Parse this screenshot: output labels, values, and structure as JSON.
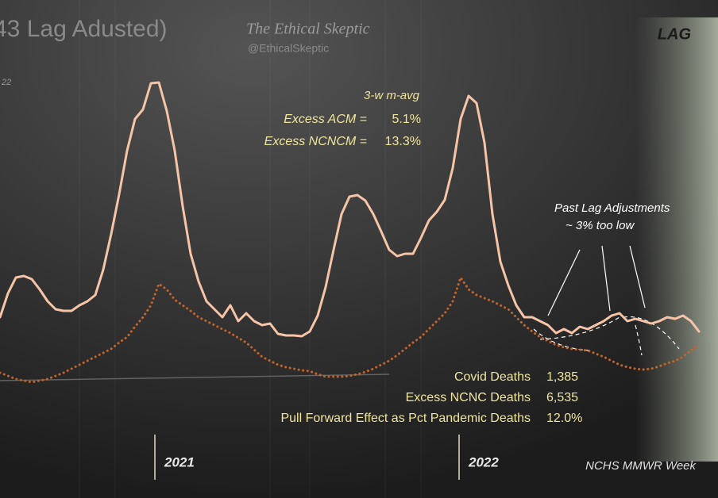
{
  "chart_data": {
    "type": "line",
    "title": "43 Lag Adusted)",
    "subtitle": "22",
    "watermark": "The Ethical Skeptic",
    "watermark_handle": "@EthicalSkeptic",
    "xlabel": "NCHS MMWR Week",
    "x": [
      0,
      1,
      2,
      3,
      4,
      5,
      6,
      7,
      8,
      9,
      10,
      11,
      12,
      13,
      14,
      15,
      16,
      17,
      18,
      19,
      20,
      21,
      22,
      23,
      24,
      25,
      26,
      27,
      28,
      29,
      30,
      31,
      32,
      33,
      34,
      35,
      36,
      37,
      38,
      39,
      40,
      41,
      42,
      43,
      44,
      45,
      46,
      47,
      48,
      49,
      50,
      51,
      52,
      53,
      54,
      55,
      56,
      57,
      58,
      59,
      60,
      61,
      62,
      63,
      64,
      65,
      66,
      67,
      68,
      69,
      70,
      71,
      72,
      73,
      74,
      75,
      76,
      77,
      78,
      79,
      80,
      81,
      82,
      83,
      84,
      85,
      86,
      87,
      88
    ],
    "xlim": [
      0,
      88
    ],
    "xticks": [
      {
        "value": 19.5,
        "label": "2021"
      },
      {
        "value": 57.8,
        "label": "2022"
      }
    ],
    "ylim": [
      0,
      600
    ],
    "series": [
      {
        "color": "#f6c4a6",
        "style": "solid",
        "values": [
          200,
          230,
          250,
          252,
          248,
          235,
          220,
          210,
          208,
          208,
          215,
          220,
          228,
          260,
          305,
          355,
          410,
          450,
          462,
          495,
          496,
          460,
          410,
          340,
          280,
          245,
          220,
          210,
          200,
          215,
          195,
          205,
          195,
          190,
          192,
          179,
          177,
          177,
          176,
          182,
          202,
          238,
          285,
          330,
          352,
          354,
          347,
          330,
          308,
          285,
          277,
          280,
          280,
          300,
          322,
          333,
          348,
          388,
          450,
          479,
          470,
          420,
          330,
          270,
          240,
          215,
          200,
          200,
          195,
          190,
          180,
          185,
          180,
          188,
          185,
          190,
          195,
          202,
          205,
          195,
          198,
          195,
          192,
          195,
          200,
          198,
          202,
          195,
          182
        ]
      },
      {
        "color": "#c4652c",
        "style": "dotted",
        "values": [
          130,
          126,
          122,
          120,
          118,
          120,
          122,
          126,
          130,
          135,
          140,
          145,
          150,
          155,
          160,
          168,
          175,
          188,
          200,
          215,
          242,
          235,
          222,
          215,
          208,
          200,
          195,
          190,
          185,
          180,
          174,
          168,
          159,
          150,
          145,
          140,
          137,
          135,
          133,
          132,
          128,
          125,
          125,
          125,
          126,
          128,
          131,
          135,
          140,
          145,
          152,
          160,
          168,
          175,
          185,
          195,
          205,
          220,
          250,
          235,
          228,
          224,
          220,
          215,
          210,
          200,
          190,
          182,
          175,
          170,
          165,
          162,
          160,
          159,
          158,
          154,
          150,
          145,
          140,
          137,
          135,
          134,
          135,
          138,
          142,
          145,
          150,
          158,
          165
        ]
      }
    ],
    "lag_label": "LAG",
    "avg_box": {
      "heading": "3-w m-avg",
      "rows": [
        [
          "Excess ACM  =",
          "5.1%"
        ],
        [
          "Excess NCNCM  =",
          "13.3%"
        ]
      ]
    },
    "lag_note": [
      "Past Lag Adjustments",
      "~ 3% too low"
    ],
    "stats": [
      [
        "Covid Deaths",
        "1,385"
      ],
      [
        "Excess NCNC Deaths",
        "6,535"
      ],
      [
        "Pull Forward Effect as Pct Pandemic Deaths",
        "12.0%"
      ]
    ]
  }
}
